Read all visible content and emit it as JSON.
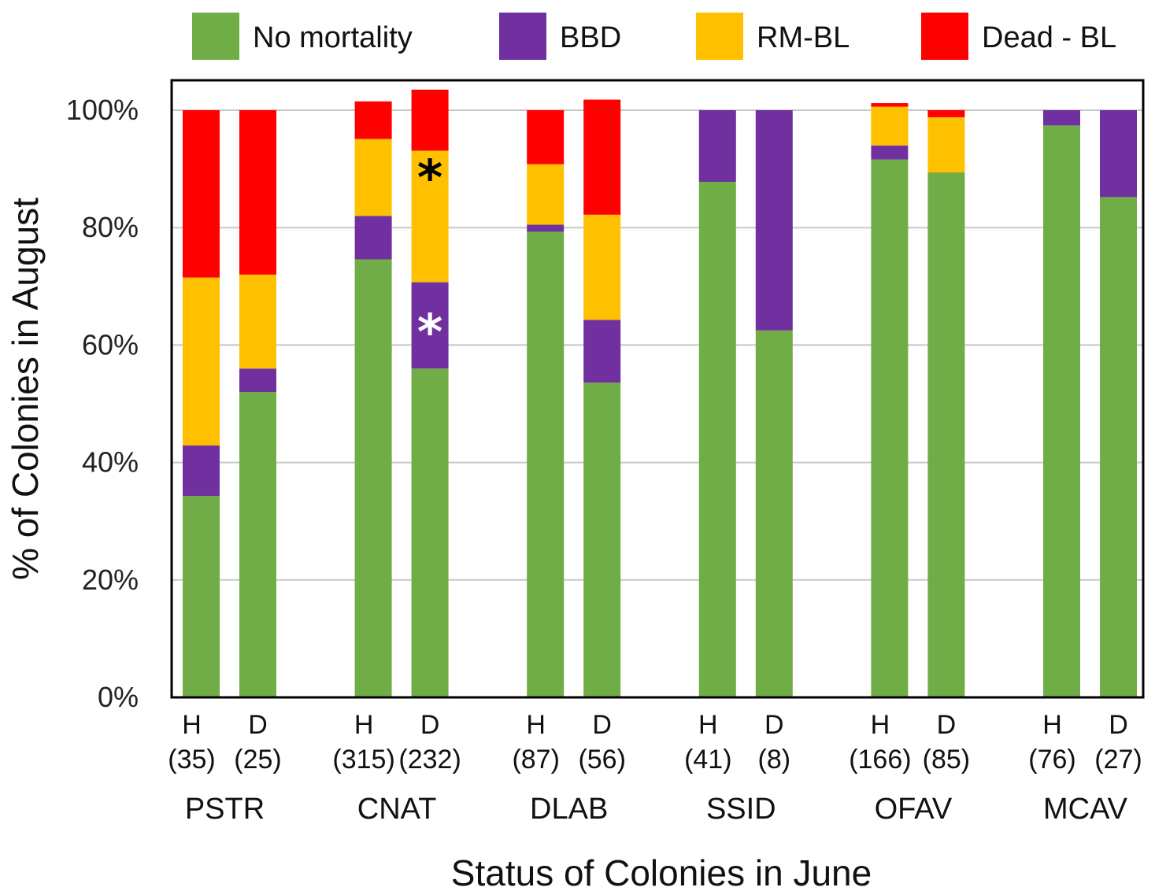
{
  "chart_data": {
    "type": "bar",
    "stacked": true,
    "xlabel": "Status of Colonies in June",
    "ylabel": "% of Colonies in August",
    "ylim": [
      0,
      100
    ],
    "yticks": [
      0,
      20,
      40,
      60,
      80,
      100
    ],
    "ytick_labels": [
      "0%",
      "20%",
      "40%",
      "60%",
      "80%",
      "100%"
    ],
    "legend_position": "top",
    "groups": [
      "PSTR",
      "CNAT",
      "DLAB",
      "SSID",
      "OFAV",
      "MCAV"
    ],
    "categories": [
      {
        "status": "H",
        "n": "(35)",
        "group": "PSTR"
      },
      {
        "status": "D",
        "n": "(25)",
        "group": "PSTR"
      },
      {
        "status": "H",
        "n": "(315)",
        "group": "CNAT"
      },
      {
        "status": "D",
        "n": "(232)",
        "group": "CNAT"
      },
      {
        "status": "H",
        "n": "(87)",
        "group": "DLAB"
      },
      {
        "status": "D",
        "n": "(56)",
        "group": "DLAB"
      },
      {
        "status": "H",
        "n": "(41)",
        "group": "SSID"
      },
      {
        "status": "D",
        "n": "(8)",
        "group": "SSID"
      },
      {
        "status": "H",
        "n": "(166)",
        "group": "OFAV"
      },
      {
        "status": "D",
        "n": "(85)",
        "group": "OFAV"
      },
      {
        "status": "H",
        "n": "(76)",
        "group": "MCAV"
      },
      {
        "status": "D",
        "n": "(27)",
        "group": "MCAV"
      }
    ],
    "series": [
      {
        "name": "No mortality",
        "color": "#70AD47",
        "values": [
          34.3,
          52,
          74.6,
          56,
          79.3,
          53.6,
          87.8,
          62.5,
          91.6,
          89.4,
          97.4,
          85.2
        ]
      },
      {
        "name": "BBD",
        "color": "#7030A0",
        "values": [
          8.6,
          4,
          7.4,
          14.7,
          1.2,
          10.7,
          12.2,
          37.5,
          2.4,
          0,
          2.6,
          14.8
        ]
      },
      {
        "name": "RM-BL",
        "color": "#FFC000",
        "values": [
          28.6,
          16,
          13.1,
          22.4,
          10.3,
          17.9,
          0,
          0,
          6.6,
          9.4,
          0,
          0
        ]
      },
      {
        "name": "Dead - BL",
        "color": "#FF0000",
        "values": [
          28.5,
          28,
          6.4,
          10.4,
          9.2,
          19.6,
          0,
          0,
          0.6,
          1.2,
          0,
          0
        ]
      }
    ],
    "annotations": [
      {
        "text": "*",
        "category_index": 3,
        "series": "RM-BL",
        "color": "#000000"
      },
      {
        "text": "*",
        "category_index": 3,
        "series": "BBD",
        "color": "#FFFFFF"
      }
    ]
  }
}
